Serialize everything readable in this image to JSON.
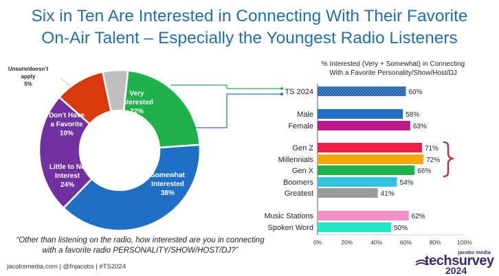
{
  "title": {
    "line1": "Six in Ten Are Interested in Connecting With Their Favorite",
    "line2": "On-Air Talent – Especially the Youngest Radio Listeners"
  },
  "question": "“Other than listening on the radio, how interested are you in connecting with a favorite radio PERSONALITY/SHOW/HOST/DJ?”",
  "footer": "jacobsmedia.com   |   @fnjacobs   |   #TS2024",
  "brand": {
    "top": "jacobs media",
    "name": "techsurvey",
    "year": "2024"
  },
  "chart_data": [
    {
      "type": "pie",
      "subtype": "donut",
      "slices": [
        {
          "label": "Very Interested",
          "value": 22,
          "text": "22%",
          "color": "#1fb14a"
        },
        {
          "label": "Somewhat Interested",
          "value": 38,
          "text": "38%",
          "color": "#1f6fc6"
        },
        {
          "label": "Little to No Interest",
          "value": 24,
          "text": "24%",
          "color": "#7030a0"
        },
        {
          "label": "Don't Have a Favorite",
          "value": 10,
          "text": "10%",
          "color": "#d93a0d"
        },
        {
          "label": "Unsure/doesn't apply",
          "value": 5,
          "text": "5%",
          "color": "#bfbfbf"
        }
      ]
    },
    {
      "type": "bar",
      "orientation": "horizontal",
      "title": "% Interested (Very + Somewhat) in Connecting With a Favorite Personality/Show/Host/DJ",
      "xlim": [
        0,
        100
      ],
      "xticks": [
        "0%",
        "20%",
        "40%",
        "60%",
        "80%",
        "100%"
      ],
      "groups": [
        {
          "bars": [
            {
              "label": "TS 2024",
              "value": 60,
              "text": "60%",
              "color": "#1f5fa8",
              "pattern": true
            }
          ]
        },
        {
          "bars": [
            {
              "label": "Male",
              "value": 58,
              "text": "58%",
              "color": "#1f6fc6"
            },
            {
              "label": "Female",
              "value": 63,
              "text": "63%",
              "color": "#c0198a"
            }
          ]
        },
        {
          "bars": [
            {
              "label": "Gen Z",
              "value": 71,
              "text": "71%",
              "color": "#ee1c47"
            },
            {
              "label": "Millennials",
              "value": 72,
              "text": "72%",
              "color": "#f5a800"
            },
            {
              "label": "Gen X",
              "value": 66,
              "text": "66%",
              "color": "#1fb14a"
            },
            {
              "label": "Boomers",
              "value": 54,
              "text": "54%",
              "color": "#2ec4de"
            },
            {
              "label": "Greatest",
              "value": 41,
              "text": "41%",
              "color": "#9c9c9c"
            }
          ]
        },
        {
          "bars": [
            {
              "label": "Music Stations",
              "value": 62,
              "text": "62%",
              "color": "#f58ec7"
            },
            {
              "label": "Spoken Word",
              "value": 50,
              "text": "50%",
              "color": "#22e8c8"
            }
          ]
        }
      ]
    }
  ]
}
